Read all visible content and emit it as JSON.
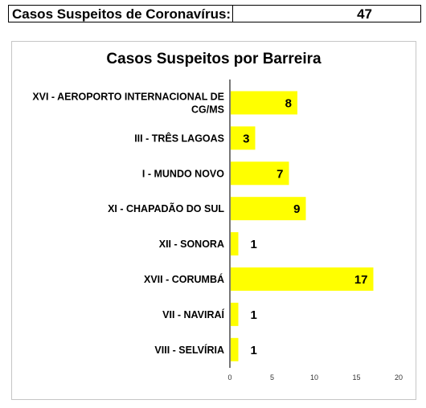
{
  "summary": {
    "label": "Casos Suspeitos de Coronavírus:",
    "value": "47"
  },
  "colors": {
    "bar": "#ffff00",
    "axis": "#777777",
    "grid": "#e6e6e6"
  },
  "chart_data": {
    "type": "bar",
    "orientation": "horizontal",
    "title": "Casos Suspeitos por Barreira",
    "xlabel": "",
    "ylabel": "",
    "categories": [
      [
        "XVI - AEROPORTO INTERNACIONAL DE",
        "CG/MS"
      ],
      [
        "III - TRÊS LAGOAS"
      ],
      [
        "I - MUNDO NOVO"
      ],
      [
        "XI - CHAPADÃO DO SUL"
      ],
      [
        "XII - SONORA"
      ],
      [
        "XVII - CORUMBÁ"
      ],
      [
        "VII - NAVIRAÍ"
      ],
      [
        "VIII - SELVÍRIA"
      ]
    ],
    "values": [
      8,
      3,
      7,
      9,
      1,
      17,
      1,
      1
    ],
    "xlim": [
      0,
      20
    ],
    "xticks": [
      0,
      5,
      10,
      15,
      20
    ],
    "data_labels": true,
    "grid": false,
    "legend": "none"
  }
}
